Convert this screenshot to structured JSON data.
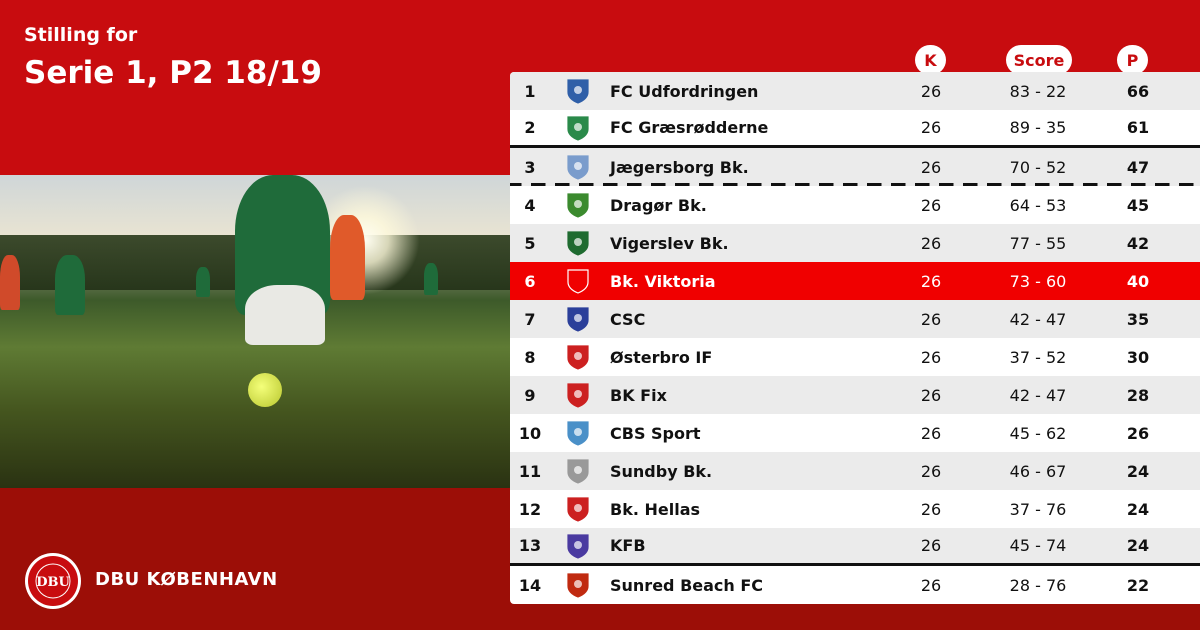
{
  "header": {
    "subtitle": "Stilling for",
    "title": "Serie 1, P2 18/19"
  },
  "brand": {
    "name": "DBU KØBENHAVN",
    "logo_text": "DBU DANSK BOLDSPIL-UNION 1889"
  },
  "colors": {
    "primary": "#c80c0f",
    "footer": "#9c0e07",
    "highlight": "#f00000"
  },
  "columns": {
    "played": "K",
    "score": "Score",
    "points": "P"
  },
  "rows": [
    {
      "rank": "1",
      "team": "FC Udfordringen",
      "played": "26",
      "score": "83 - 22",
      "points": "66",
      "logo_color": "#2f5fa8"
    },
    {
      "rank": "2",
      "team": "FC Græsrødderne",
      "played": "26",
      "score": "89 - 35",
      "points": "61",
      "logo_color": "#2a8a4a"
    },
    {
      "rank": "3",
      "team": "Jægersborg Bk.",
      "played": "26",
      "score": "70 - 52",
      "points": "47",
      "logo_color": "#7a9ccc"
    },
    {
      "rank": "4",
      "team": "Dragør Bk.",
      "played": "26",
      "score": "64 - 53",
      "points": "45",
      "logo_color": "#3b8a2e"
    },
    {
      "rank": "5",
      "team": "Vigerslev Bk.",
      "played": "26",
      "score": "77 - 55",
      "points": "42",
      "logo_color": "#1f6b30"
    },
    {
      "rank": "6",
      "team": "Bk. Viktoria",
      "played": "26",
      "score": "73 - 60",
      "points": "40",
      "logo_color": "#d01010"
    },
    {
      "rank": "7",
      "team": "CSC",
      "played": "26",
      "score": "42 - 47",
      "points": "35",
      "logo_color": "#2b3f9a"
    },
    {
      "rank": "8",
      "team": "Østerbro IF",
      "played": "26",
      "score": "37 - 52",
      "points": "30",
      "logo_color": "#cc2020"
    },
    {
      "rank": "9",
      "team": "BK Fix",
      "played": "26",
      "score": "42 - 47",
      "points": "28",
      "logo_color": "#cc2020"
    },
    {
      "rank": "10",
      "team": "CBS Sport",
      "played": "26",
      "score": "45 - 62",
      "points": "26",
      "logo_color": "#4a90c8"
    },
    {
      "rank": "11",
      "team": "Sundby Bk.",
      "played": "26",
      "score": "46 - 67",
      "points": "24",
      "logo_color": "#999999"
    },
    {
      "rank": "12",
      "team": "Bk. Hellas",
      "played": "26",
      "score": "37 - 76",
      "points": "24",
      "logo_color": "#cc2020"
    },
    {
      "rank": "13",
      "team": "KFB",
      "played": "26",
      "score": "45 - 74",
      "points": "24",
      "logo_color": "#4a3aa0"
    },
    {
      "rank": "14",
      "team": "Sunred Beach FC",
      "played": "26",
      "score": "28 - 76",
      "points": "22",
      "logo_color": "#c02a10"
    }
  ]
}
